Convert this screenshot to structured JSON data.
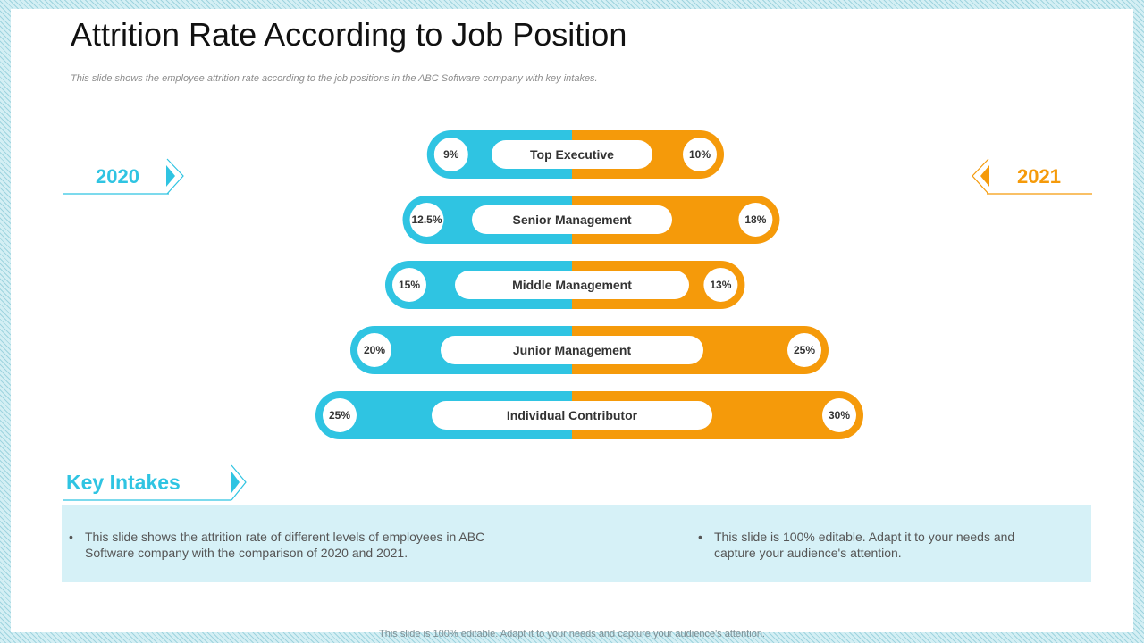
{
  "slide": {
    "title": "Attrition Rate According to Job Position",
    "subtitle": "This slide shows the employee attrition rate according to the job positions in the ABC Software company with key intakes.",
    "year_left": "2020",
    "year_right": "2021",
    "key_intakes_title": "Key Intakes",
    "bullets": [
      "This slide shows the attrition rate of different levels of employees in ABC Software company with the comparison of 2020 and 2021.",
      "This slide is 100% editable. Adapt it to your needs and capture your audience's attention."
    ],
    "footer": "This slide is 100% editable. Adapt it to your needs and capture your audience's attention."
  },
  "colors": {
    "series_2020": "#2fc4e2",
    "series_2021": "#f59a0a",
    "title": "#111111",
    "text": "#555555"
  },
  "chart_data": {
    "type": "bar",
    "categories": [
      "Top Executive",
      "Senior Management",
      "Middle Management",
      "Junior Management",
      "Individual Contributor"
    ],
    "series": [
      {
        "name": "2020",
        "values": [
          9,
          12.5,
          15,
          20,
          25
        ],
        "labels": [
          "9%",
          "12.5%",
          "15%",
          "20%",
          "25%"
        ]
      },
      {
        "name": "2021",
        "values": [
          10,
          18,
          13,
          25,
          30
        ],
        "labels": [
          "10%",
          "18%",
          "13%",
          "25%",
          "30%"
        ]
      }
    ],
    "orientation": "horizontal-butterfly",
    "legend": "none",
    "grid": false
  }
}
